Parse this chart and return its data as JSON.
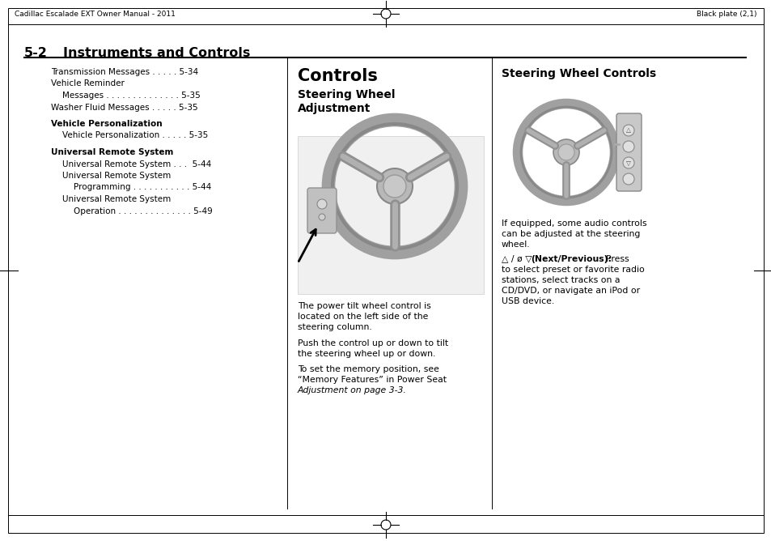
{
  "page_bg": "#ffffff",
  "header_left": "Cadillac Escalade EXT Owner Manual - 2011",
  "header_right": "Black plate (2,1)",
  "section_num": "5-2",
  "section_title": "Instruments and Controls",
  "toc_items": [
    {
      "text": "Transmission Messages . . . . . 5-34",
      "bold": false,
      "indent": 0
    },
    {
      "text": "Vehicle Reminder",
      "bold": false,
      "indent": 0
    },
    {
      "text": "Messages . . . . . . . . . . . . . . 5-35",
      "bold": false,
      "indent": 1
    },
    {
      "text": "Washer Fluid Messages . . . . . 5-35",
      "bold": false,
      "indent": 0
    },
    {
      "text": "Vehicle Personalization",
      "bold": true,
      "indent": 0
    },
    {
      "text": "Vehicle Personalization . . . . . 5-35",
      "bold": false,
      "indent": 1
    },
    {
      "text": "Universal Remote System",
      "bold": true,
      "indent": 0
    },
    {
      "text": "Universal Remote System . . .  5-44",
      "bold": false,
      "indent": 1
    },
    {
      "text": "Universal Remote System",
      "bold": false,
      "indent": 1
    },
    {
      "text": "Programming . . . . . . . . . . . 5-44",
      "bold": false,
      "indent": 2
    },
    {
      "text": "Universal Remote System",
      "bold": false,
      "indent": 1
    },
    {
      "text": "Operation . . . . . . . . . . . . . . 5-49",
      "bold": false,
      "indent": 2
    }
  ],
  "col2_title": "Controls",
  "col2_subtitle": "Steering Wheel\nAdjustment",
  "col2_body": [
    {
      "text": "The power tilt wheel control is",
      "italic": false
    },
    {
      "text": "located on the left side of the",
      "italic": false
    },
    {
      "text": "steering column.",
      "italic": false
    },
    {
      "text": "",
      "italic": false
    },
    {
      "text": "Push the control up or down to tilt",
      "italic": false
    },
    {
      "text": "the steering wheel up or down.",
      "italic": false
    },
    {
      "text": "",
      "italic": false
    },
    {
      "text": "To set the memory position, see",
      "italic": false
    },
    {
      "text": "“Memory Features” in ",
      "italic": false,
      "continue": "“Power Seat”",
      "cont_italic": true
    },
    {
      "text": "Adjustment on page 3-3.",
      "italic": true
    }
  ],
  "col3_title": "Steering Wheel Controls",
  "col3_body1": [
    "If equipped, some audio controls",
    "can be adjusted at the steering",
    "wheel."
  ],
  "col3_body2_sym": "△ / ø ▽",
  "col3_body2_bold": "(Next/Previous):",
  "col3_body2_rest": [
    "  Press",
    "to select preset or favorite radio",
    "stations, select tracks on a",
    "CD/DVD, or navigate an iPod or",
    "USB device."
  ]
}
